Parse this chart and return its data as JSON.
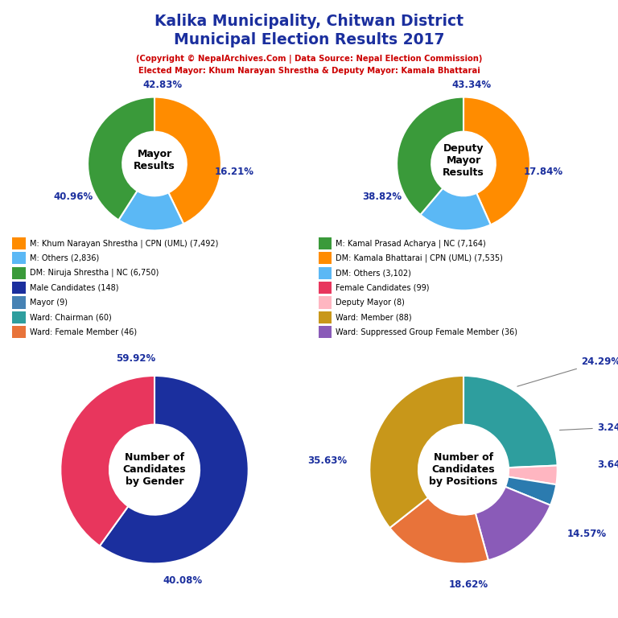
{
  "title_line1": "Kalika Municipality, Chitwan District",
  "title_line2": "Municipal Election Results 2017",
  "subtitle1": "(Copyright © NepalArchives.Com | Data Source: Nepal Election Commission)",
  "subtitle2": "Elected Mayor: Khum Narayan Shrestha & Deputy Mayor: Kamala Bhattarai",
  "mayor_values": [
    42.83,
    16.21,
    40.96
  ],
  "mayor_colors": [
    "#FF8C00",
    "#5BB8F5",
    "#3A9A3A"
  ],
  "deputy_values": [
    43.34,
    17.84,
    38.82
  ],
  "deputy_colors": [
    "#FF8C00",
    "#5BB8F5",
    "#3A9A3A"
  ],
  "gender_values": [
    59.92,
    40.08
  ],
  "gender_colors": [
    "#1B2F9E",
    "#E8365D"
  ],
  "positions_values": [
    24.29,
    3.24,
    3.64,
    14.57,
    18.62,
    35.63
  ],
  "positions_colors": [
    "#2E9E9E",
    "#FFB6C1",
    "#2B7BAF",
    "#8A5BB8",
    "#E8733A",
    "#C8971A"
  ],
  "legend_items_left": [
    {
      "label": "M: Khum Narayan Shrestha | CPN (UML) (7,492)",
      "color": "#FF8C00"
    },
    {
      "label": "M: Others (2,836)",
      "color": "#5BB8F5"
    },
    {
      "label": "DM: Niruja Shrestha | NC (6,750)",
      "color": "#3A9A3A"
    },
    {
      "label": "Male Candidates (148)",
      "color": "#1B2F9E"
    },
    {
      "label": "Mayor (9)",
      "color": "#4682B4"
    },
    {
      "label": "Ward: Chairman (60)",
      "color": "#2E9E9E"
    },
    {
      "label": "Ward: Female Member (46)",
      "color": "#E8733A"
    }
  ],
  "legend_items_right": [
    {
      "label": "M: Kamal Prasad Acharya | NC (7,164)",
      "color": "#3A9A3A"
    },
    {
      "label": "DM: Kamala Bhattarai | CPN (UML) (7,535)",
      "color": "#FF8C00"
    },
    {
      "label": "DM: Others (3,102)",
      "color": "#5BB8F5"
    },
    {
      "label": "Female Candidates (99)",
      "color": "#E8365D"
    },
    {
      "label": "Deputy Mayor (8)",
      "color": "#FFB6C1"
    },
    {
      "label": "Ward: Member (88)",
      "color": "#C8971A"
    },
    {
      "label": "Ward: Suppressed Group Female Member (36)",
      "color": "#8A5BB8"
    }
  ],
  "title_color": "#1B2F9E",
  "subtitle_color": "#CC0000",
  "pct_color": "#1B2F9E",
  "bg_color": "#FFFFFF"
}
